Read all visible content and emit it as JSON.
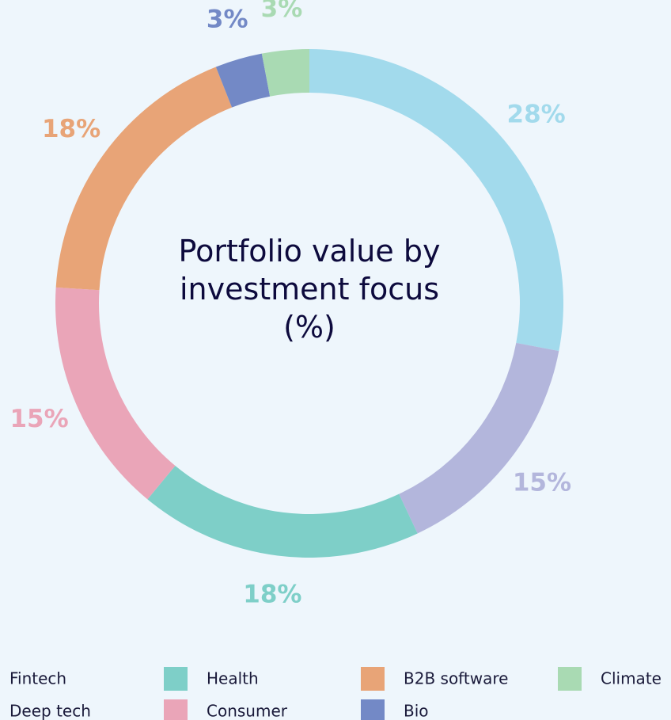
{
  "chart_data": {
    "type": "donut",
    "title": "Portfolio value by investment focus (%)",
    "categories": [
      "Fintech",
      "Deep tech",
      "Health",
      "Consumer",
      "B2B software",
      "Bio",
      "Climate"
    ],
    "values": [
      28,
      15,
      18,
      15,
      18,
      3,
      3
    ],
    "value_labels": [
      "28%",
      "15%",
      "18%",
      "15%",
      "18%",
      "3%",
      "3%"
    ],
    "colors": [
      "#a2daec",
      "#b3b6dc",
      "#7ecfc8",
      "#eaa5b8",
      "#e8a477",
      "#7389c6",
      "#a9dab3"
    ],
    "legend": "bottom"
  }
}
